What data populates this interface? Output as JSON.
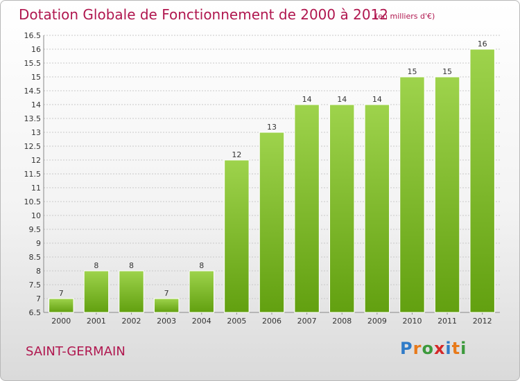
{
  "header": {
    "title": "Dotation Globale de Fonctionnement de 2000 à 2012",
    "unit": "(en milliers d'€)"
  },
  "commune": "SAINT-GERMAIN",
  "logo": {
    "text": "Proxiti",
    "letter_colors": [
      "#2f7bc8",
      "#e87a1a",
      "#3c9a3c",
      "#d42828",
      "#2f7bc8",
      "#e87a1a",
      "#3c9a3c"
    ]
  },
  "colors": {
    "bar_top": "#9ed34c",
    "bar_bottom": "#62a010",
    "grid": "#c8c8c8",
    "accent": "#b0174f"
  },
  "chart_data": {
    "type": "bar",
    "categories": [
      "2000",
      "2001",
      "2002",
      "2003",
      "2004",
      "2005",
      "2006",
      "2007",
      "2008",
      "2009",
      "2010",
      "2011",
      "2012"
    ],
    "values": [
      7,
      8,
      8,
      7,
      8,
      12,
      13,
      14,
      14,
      14,
      15,
      15,
      16
    ],
    "data_labels": [
      "7",
      "8",
      "8",
      "7",
      "8",
      "12",
      "13",
      "14",
      "14",
      "14",
      "15",
      "15",
      "16"
    ],
    "ylim": [
      6.5,
      16.5
    ],
    "yticks": [
      6.5,
      7,
      7.5,
      8,
      8.5,
      9,
      9.5,
      10,
      10.5,
      11,
      11.5,
      12,
      12.5,
      13,
      13.5,
      14,
      14.5,
      15,
      15.5,
      16,
      16.5
    ],
    "ytick_labels": [
      "6.5",
      "7",
      "7.5",
      "8",
      "8.5",
      "9",
      "9.5",
      "10",
      "10.5",
      "11",
      "11.5",
      "12",
      "12.5",
      "13",
      "13.5",
      "14",
      "14.5",
      "15",
      "15.5",
      "16",
      "16.5"
    ],
    "grid": true,
    "legend": "none"
  }
}
